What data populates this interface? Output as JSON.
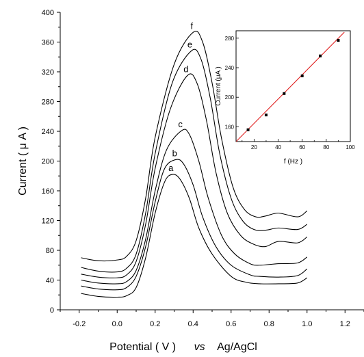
{
  "chart_data": [
    {
      "type": "line",
      "title": "",
      "xlabel": "Potential ( V )",
      "xlabel_vs": "vs",
      "xlabel_ref": "Ag/AgCl",
      "ylabel": "Current ( μ A )",
      "xlim": [
        -0.3,
        1.3
      ],
      "ylim": [
        0,
        400
      ],
      "xticks": [
        "-0.2",
        "0.0",
        "0.2",
        "0.4",
        "0.6",
        "0.8",
        "1.0",
        "1.2"
      ],
      "xtick_values": [
        -0.2,
        0.0,
        0.2,
        0.4,
        0.6,
        0.8,
        1.0,
        1.2
      ],
      "yticks": [
        "0",
        "40",
        "80",
        "120",
        "160",
        "200",
        "240",
        "280",
        "320",
        "360",
        "400"
      ],
      "ytick_values": [
        0,
        40,
        80,
        120,
        160,
        200,
        240,
        280,
        320,
        360,
        400
      ],
      "grid": false,
      "series": [
        {
          "name": "a",
          "peak": [
            0.29,
            182
          ],
          "x": [
            -0.19,
            -0.1,
            0.0,
            0.05,
            0.1,
            0.15,
            0.2,
            0.25,
            0.29,
            0.33,
            0.38,
            0.43,
            0.5,
            0.6,
            0.68,
            0.75,
            0.85,
            0.95,
            1.0
          ],
          "y": [
            22,
            18,
            17,
            19,
            30,
            70,
            130,
            172,
            182,
            176,
            150,
            110,
            75,
            45,
            37,
            35,
            35,
            36,
            43
          ]
        },
        {
          "name": "b",
          "peak": [
            0.31,
            202
          ],
          "x": [
            -0.19,
            -0.1,
            0.0,
            0.05,
            0.1,
            0.15,
            0.2,
            0.25,
            0.31,
            0.35,
            0.4,
            0.45,
            0.52,
            0.6,
            0.7,
            0.75,
            0.85,
            0.95,
            1.0
          ],
          "y": [
            32,
            28,
            27,
            30,
            45,
            85,
            145,
            190,
            202,
            196,
            168,
            125,
            85,
            60,
            47,
            45,
            44,
            46,
            55
          ]
        },
        {
          "name": "c",
          "peak": [
            0.34,
            241
          ],
          "x": [
            -0.19,
            -0.1,
            0.0,
            0.05,
            0.1,
            0.15,
            0.2,
            0.26,
            0.34,
            0.38,
            0.43,
            0.48,
            0.55,
            0.62,
            0.7,
            0.75,
            0.85,
            0.95,
            1.0
          ],
          "y": [
            40,
            36,
            35,
            38,
            53,
            95,
            160,
            215,
            241,
            236,
            200,
            150,
            100,
            75,
            62,
            60,
            62,
            63,
            71
          ]
        },
        {
          "name": "d",
          "peak": [
            0.37,
            315
          ],
          "x": [
            -0.19,
            -0.1,
            0.0,
            0.05,
            0.1,
            0.15,
            0.2,
            0.28,
            0.37,
            0.42,
            0.47,
            0.52,
            0.58,
            0.65,
            0.72,
            0.78,
            0.85,
            0.95,
            1.0
          ],
          "y": [
            48,
            44,
            43,
            47,
            65,
            115,
            190,
            270,
            315,
            305,
            255,
            185,
            130,
            100,
            88,
            85,
            92,
            90,
            98
          ]
        },
        {
          "name": "e",
          "peak": [
            0.39,
            348
          ],
          "x": [
            -0.19,
            -0.1,
            0.0,
            0.05,
            0.1,
            0.15,
            0.2,
            0.29,
            0.39,
            0.44,
            0.49,
            0.54,
            0.6,
            0.66,
            0.72,
            0.78,
            0.85,
            0.95,
            1.0
          ],
          "y": [
            57,
            52,
            51,
            56,
            75,
            130,
            210,
            305,
            348,
            338,
            285,
            210,
            150,
            120,
            108,
            107,
            110,
            108,
            115
          ]
        },
        {
          "name": "f",
          "peak": [
            0.4,
            373
          ],
          "x": [
            -0.19,
            -0.1,
            0.0,
            0.05,
            0.1,
            0.15,
            0.2,
            0.3,
            0.4,
            0.45,
            0.5,
            0.55,
            0.61,
            0.67,
            0.73,
            0.78,
            0.85,
            0.95,
            1.0
          ],
          "y": [
            70,
            66,
            67,
            72,
            93,
            150,
            232,
            330,
            373,
            360,
            305,
            230,
            165,
            135,
            125,
            126,
            130,
            125,
            133
          ]
        }
      ]
    },
    {
      "type": "scatter",
      "inset": true,
      "xlabel": "f (Hz )",
      "ylabel": "Current (μA )",
      "xlim": [
        5,
        100
      ],
      "ylim": [
        140,
        290
      ],
      "xticks": [
        "20",
        "40",
        "60",
        "80",
        "100"
      ],
      "xtick_values": [
        20,
        40,
        60,
        80,
        100
      ],
      "xticks_minor": [
        10,
        30,
        50,
        70,
        90
      ],
      "yticks": [
        "160",
        "200",
        "240",
        "280"
      ],
      "ytick_values": [
        160,
        200,
        240,
        280
      ],
      "points": {
        "x": [
          15,
          30,
          45,
          60,
          75,
          90
        ],
        "y": [
          156,
          176,
          205,
          229,
          256,
          277
        ]
      },
      "fit_line": {
        "x": [
          5,
          95
        ],
        "y": [
          140,
          288
        ],
        "color": "#e02020"
      },
      "marker_color": "#000000"
    }
  ]
}
